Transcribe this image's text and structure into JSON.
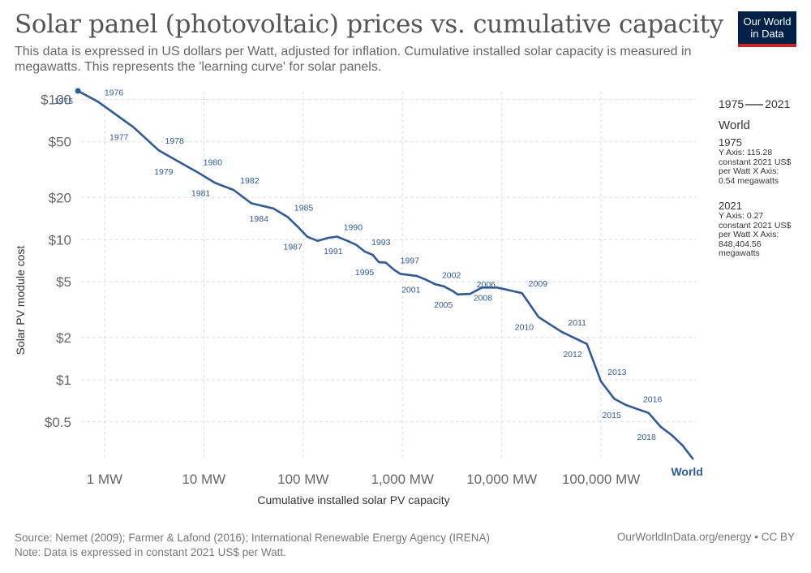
{
  "header": {
    "title": "Solar panel (photovoltaic) prices vs. cumulative capacity",
    "subtitle": "This data is expressed in US dollars per Watt, adjusted for inflation. Cumulative installed solar capacity is measured in megawatts. This represents the 'learning curve' for solar panels.",
    "logo_line1": "Our World",
    "logo_line2": "in Data"
  },
  "legend": {
    "start_year": "1975",
    "end_year": "2021",
    "entity": "World",
    "start_label": "1975",
    "start_detail": "Y Axis: 115.28 constant 2021 US$ per Watt X Axis: 0.54 megawatts",
    "end_label": "2021",
    "end_detail": "Y Axis: 0.27 constant 2021 US$ per Watt X Axis: 848,404.56 megawatts"
  },
  "footer": {
    "source": "Source: Nemet (2009); Farmer & Lafond (2016); International Renewable Energy Agency (IRENA)",
    "note": "Note: Data is expressed in constant 2021 US$ per Watt.",
    "attribution": "OurWorldInData.org/energy • CC BY"
  },
  "colors": {
    "series": "#2d5a9e",
    "grid": "#dddddd",
    "axis_text": "#666666"
  },
  "chart_data": {
    "type": "line",
    "title": "Solar panel (photovoltaic) prices vs. cumulative capacity",
    "xlabel": "Cumulative installed solar PV capacity",
    "ylabel": "Solar PV module cost",
    "xscale": "log",
    "yscale": "log",
    "xlim": [
      0.5,
      900000
    ],
    "ylim": [
      0.27,
      115.28
    ],
    "x_ticks": [
      {
        "value": 1,
        "label": "1 MW"
      },
      {
        "value": 10,
        "label": "10 MW"
      },
      {
        "value": 100,
        "label": "100 MW"
      },
      {
        "value": 1000,
        "label": "1,000 MW"
      },
      {
        "value": 10000,
        "label": "10,000 MW"
      },
      {
        "value": 100000,
        "label": "100,000 MW"
      }
    ],
    "y_ticks": [
      {
        "value": 100,
        "label": "$100"
      },
      {
        "value": 50,
        "label": "$50"
      },
      {
        "value": 20,
        "label": "$20"
      },
      {
        "value": 10,
        "label": "$10"
      },
      {
        "value": 5,
        "label": "$5"
      },
      {
        "value": 2,
        "label": "$2"
      },
      {
        "value": 1,
        "label": "$1"
      },
      {
        "value": 0.5,
        "label": "$0.5"
      }
    ],
    "series": [
      {
        "name": "World",
        "points": [
          {
            "year": "1975",
            "x": 0.54,
            "y": 115.28
          },
          {
            "year": "1976",
            "x": 0.86,
            "y": 96.6
          },
          {
            "year": "1977",
            "x": 1.95,
            "y": 63.6
          },
          {
            "year": "1978",
            "x": 3.5,
            "y": 43.5
          },
          {
            "year": "1979",
            "x": 5.5,
            "y": 36.2
          },
          {
            "year": "1980",
            "x": 8.5,
            "y": 30.5
          },
          {
            "year": "1981",
            "x": 13,
            "y": 25.4
          },
          {
            "year": "1982",
            "x": 20,
            "y": 22.6
          },
          {
            "year": "1983",
            "x": 30,
            "y": 18.2
          },
          {
            "year": "1984",
            "x": 50,
            "y": 16.7
          },
          {
            "year": "1985",
            "x": 70,
            "y": 14.5
          },
          {
            "year": "1986",
            "x": 90,
            "y": 12.2
          },
          {
            "year": "1987",
            "x": 110,
            "y": 10.5
          },
          {
            "year": "1988",
            "x": 140,
            "y": 9.8
          },
          {
            "year": "1989",
            "x": 180,
            "y": 10.3
          },
          {
            "year": "1990",
            "x": 220,
            "y": 10.5
          },
          {
            "year": "1991",
            "x": 280,
            "y": 9.8
          },
          {
            "year": "1992",
            "x": 340,
            "y": 9.2
          },
          {
            "year": "1993",
            "x": 420,
            "y": 8.2
          },
          {
            "year": "1994",
            "x": 500,
            "y": 7.8
          },
          {
            "year": "1995",
            "x": 580,
            "y": 6.9
          },
          {
            "year": "1996",
            "x": 680,
            "y": 6.85
          },
          {
            "year": "1997",
            "x": 820,
            "y": 6.1
          },
          {
            "year": "1998",
            "x": 950,
            "y": 5.7
          },
          {
            "year": "1999",
            "x": 1150,
            "y": 5.6
          },
          {
            "year": "2000",
            "x": 1400,
            "y": 5.5
          },
          {
            "year": "2001",
            "x": 1700,
            "y": 5.2
          },
          {
            "year": "2002",
            "x": 2150,
            "y": 4.8
          },
          {
            "year": "2003",
            "x": 2600,
            "y": 4.65
          },
          {
            "year": "2004",
            "x": 3200,
            "y": 4.3
          },
          {
            "year": "2005",
            "x": 3600,
            "y": 4.06
          },
          {
            "year": "2006",
            "x": 4800,
            "y": 4.1
          },
          {
            "year": "2007",
            "x": 6300,
            "y": 4.55
          },
          {
            "year": "2008",
            "x": 9000,
            "y": 4.55
          },
          {
            "year": "2009",
            "x": 16000,
            "y": 4.15
          },
          {
            "year": "2010",
            "x": 23500,
            "y": 2.8
          },
          {
            "year": "2011",
            "x": 40000,
            "y": 2.2
          },
          {
            "year": "2012",
            "x": 72000,
            "y": 1.8
          },
          {
            "year": "2013",
            "x": 100000,
            "y": 0.97
          },
          {
            "year": "2014",
            "x": 136000,
            "y": 0.73
          },
          {
            "year": "2015",
            "x": 178000,
            "y": 0.66
          },
          {
            "year": "2016",
            "x": 228000,
            "y": 0.62
          },
          {
            "year": "2017",
            "x": 300000,
            "y": 0.58
          },
          {
            "year": "2018",
            "x": 400000,
            "y": 0.46
          },
          {
            "year": "2019",
            "x": 520000,
            "y": 0.4
          },
          {
            "year": "2020",
            "x": 660000,
            "y": 0.34
          },
          {
            "year": "2021",
            "x": 848404.56,
            "y": 0.27
          }
        ]
      }
    ],
    "point_labels": [
      "1975",
      "1976",
      "1977",
      "1978",
      "1979",
      "1980",
      "1981",
      "1982",
      "1984",
      "1985",
      "1987",
      "1990",
      "1991",
      "1993",
      "1995",
      "1997",
      "2001",
      "2002",
      "2005",
      "2006",
      "2008",
      "2009",
      "2010",
      "2011",
      "2012",
      "2013",
      "2015",
      "2016",
      "2018"
    ],
    "series_label": "World"
  }
}
